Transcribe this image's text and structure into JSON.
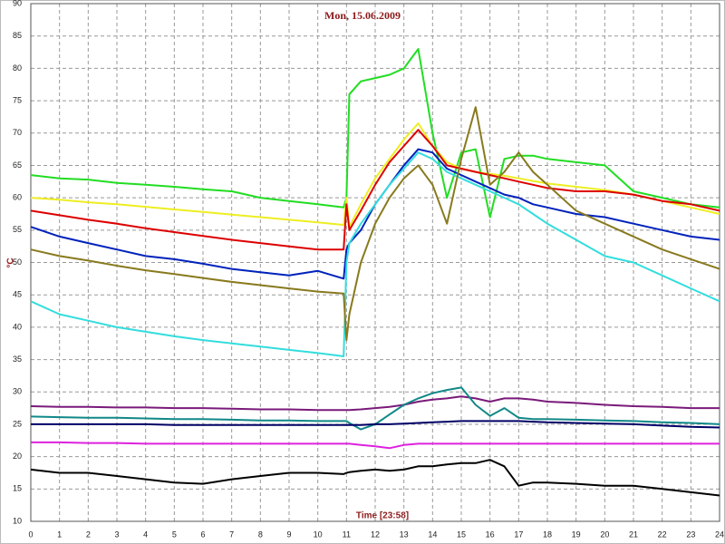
{
  "chart_data": {
    "type": "line",
    "title": "Mon, 15.06.2009",
    "xlabel": "Time [23:58]",
    "ylabel": "°C",
    "x": [
      0,
      1,
      2,
      3,
      4,
      5,
      6,
      7,
      8,
      9,
      10,
      10.9,
      11,
      11.1,
      11.5,
      12,
      12.5,
      13,
      13.5,
      14,
      14.5,
      15,
      15.5,
      16,
      16.5,
      17,
      17.5,
      18,
      19,
      20,
      21,
      22,
      23,
      24
    ],
    "xlim": [
      0,
      24
    ],
    "xticks": [
      0,
      1,
      2,
      3,
      4,
      5,
      6,
      7,
      8,
      9,
      10,
      11,
      12,
      13,
      14,
      15,
      16,
      17,
      18,
      19,
      20,
      21,
      22,
      23,
      24
    ],
    "ylim": [
      10,
      90
    ],
    "yticks": [
      10,
      15,
      20,
      25,
      30,
      35,
      40,
      45,
      50,
      55,
      60,
      65,
      70,
      75,
      80,
      85,
      90
    ],
    "grid": true,
    "series": [
      {
        "color": "#22dd22",
        "values": [
          63.5,
          63,
          62.8,
          62.3,
          62,
          61.7,
          61.3,
          61,
          60,
          59.5,
          59,
          58.5,
          60,
          76,
          78,
          78.5,
          79,
          80,
          83,
          70,
          60,
          67,
          67.5,
          57,
          66,
          66.5,
          66.5,
          66,
          65.5,
          65,
          61,
          60,
          59,
          58.5
        ]
      },
      {
        "color": "#eeee22",
        "values": [
          60,
          59.7,
          59.3,
          59,
          58.6,
          58.2,
          57.8,
          57.4,
          57,
          56.6,
          56.2,
          55.8,
          60,
          55.5,
          59,
          63,
          66,
          69,
          71.5,
          68,
          65.5,
          64.5,
          64,
          63.7,
          63.4,
          63,
          62.6,
          62.2,
          61.7,
          61.2,
          60.5,
          59.5,
          58.5,
          57.5
        ]
      },
      {
        "color": "#dd0000",
        "values": [
          58,
          57.3,
          56.6,
          56,
          55.3,
          54.7,
          54.1,
          53.5,
          53,
          52.5,
          52,
          52,
          59,
          55,
          58,
          62,
          65.5,
          68,
          70.5,
          68,
          65,
          64.5,
          64,
          63.5,
          63,
          62.5,
          62,
          61.5,
          61,
          61,
          60.5,
          59.5,
          59,
          58
        ]
      },
      {
        "color": "#0022bb",
        "values": [
          55.5,
          54,
          53,
          52,
          51,
          50.5,
          49.8,
          49,
          48.5,
          48,
          48.7,
          47.5,
          52,
          53,
          55,
          59,
          62,
          65,
          67.5,
          67,
          64.5,
          63.5,
          62.5,
          61.5,
          60.5,
          60,
          59,
          58.5,
          57.5,
          57,
          56,
          55,
          54,
          53.5
        ]
      },
      {
        "color": "#33dddd",
        "values": [
          44,
          42,
          41,
          40,
          39.3,
          38.6,
          38,
          37.5,
          37,
          36.5,
          36,
          35.5,
          50,
          53,
          56,
          59,
          62,
          64.5,
          67,
          66,
          64,
          63,
          62,
          61,
          60,
          59,
          57.5,
          56,
          53.5,
          51,
          50,
          48,
          46,
          44
        ]
      },
      {
        "color": "#887a1e",
        "values": [
          52,
          51,
          50.3,
          49.5,
          48.8,
          48.2,
          47.6,
          47,
          46.5,
          46,
          45.5,
          45.2,
          38,
          42,
          50,
          56,
          60,
          63,
          65,
          62,
          56,
          66,
          74,
          62,
          64,
          67,
          64,
          62,
          58,
          56,
          54,
          52,
          50.5,
          49
        ]
      },
      {
        "color": "#7a1a7a",
        "values": [
          27.8,
          27.7,
          27.7,
          27.6,
          27.6,
          27.5,
          27.5,
          27.4,
          27.3,
          27.3,
          27.2,
          27.2,
          27.2,
          27.2,
          27.3,
          27.5,
          27.7,
          28,
          28.5,
          28.8,
          29,
          29.3,
          29,
          28.5,
          29,
          29,
          28.8,
          28.5,
          28.3,
          28,
          27.8,
          27.7,
          27.5,
          27.5
        ]
      },
      {
        "color": "#118888",
        "values": [
          26.2,
          26.1,
          26,
          26,
          25.9,
          25.8,
          25.8,
          25.7,
          25.6,
          25.6,
          25.5,
          25.5,
          25.5,
          25.2,
          24.2,
          25,
          26.5,
          28,
          29,
          29.8,
          30.3,
          30.7,
          28,
          26.3,
          27.5,
          26,
          25.8,
          25.8,
          25.7,
          25.6,
          25.5,
          25.3,
          25.2,
          25
        ]
      },
      {
        "color": "#000066",
        "values": [
          25,
          25,
          25,
          25,
          25,
          24.9,
          24.9,
          24.9,
          24.9,
          24.9,
          24.9,
          24.9,
          24.9,
          24.9,
          24.9,
          25,
          25,
          25.1,
          25.2,
          25.3,
          25.4,
          25.5,
          25.5,
          25.5,
          25.5,
          25.5,
          25.4,
          25.3,
          25.2,
          25.1,
          25,
          24.8,
          24.6,
          24.5
        ]
      },
      {
        "color": "#dd22dd",
        "values": [
          22.2,
          22.2,
          22.1,
          22.1,
          22,
          22,
          22,
          22,
          22,
          22,
          22,
          22,
          22,
          22,
          21.8,
          21.6,
          21.3,
          21.8,
          22,
          22,
          22,
          22,
          22,
          22,
          22,
          22,
          22,
          22,
          22,
          22,
          22,
          22,
          22,
          22
        ]
      },
      {
        "color": "#000000",
        "values": [
          18,
          17.5,
          17.5,
          17,
          16.5,
          16,
          15.8,
          16.5,
          17,
          17.5,
          17.5,
          17.3,
          17.5,
          17.6,
          17.8,
          18,
          17.8,
          18,
          18.5,
          18.5,
          18.8,
          19,
          19,
          19.5,
          18.5,
          15.5,
          16,
          16,
          15.8,
          15.5,
          15.5,
          15,
          14.5,
          14
        ]
      }
    ]
  }
}
